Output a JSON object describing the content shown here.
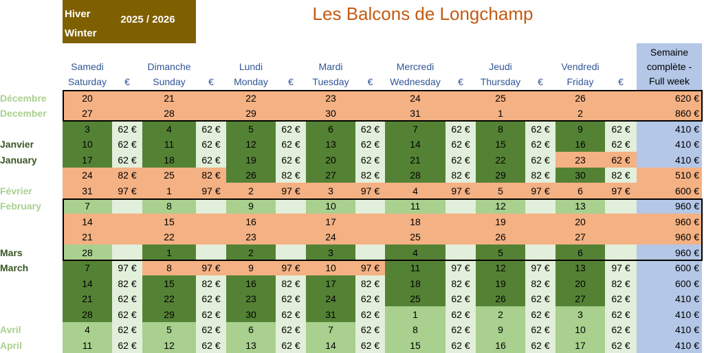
{
  "header": {
    "season_fr": "Hiver",
    "season_en": "Winter",
    "years": "2025 / 2026",
    "title": "Les Balcons de Longchamp"
  },
  "columns": [
    {
      "fr": "Samedi",
      "en": "Saturday"
    },
    {
      "fr": "Dimanche",
      "en": "Sunday"
    },
    {
      "fr": "Lundi",
      "en": "Monday"
    },
    {
      "fr": "Mardi",
      "en": "Tuesday"
    },
    {
      "fr": "Mercredi",
      "en": "Wednesday"
    },
    {
      "fr": "Jeudi",
      "en": "Thursday"
    },
    {
      "fr": "Vendredi",
      "en": "Friday"
    }
  ],
  "currency": "€",
  "week_header": [
    "Semaine",
    "complète -",
    "Full week"
  ],
  "rows": [
    {
      "label": "Décembre",
      "days": [
        20,
        21,
        22,
        23,
        24,
        25,
        26
      ],
      "prices": [
        null,
        null,
        null,
        null,
        null,
        null,
        null
      ],
      "week": "620 €"
    },
    {
      "label": "December",
      "days": [
        27,
        28,
        29,
        30,
        31,
        1,
        2
      ],
      "prices": [
        null,
        null,
        null,
        null,
        null,
        null,
        null
      ],
      "week": "860 €"
    },
    {
      "days": [
        3,
        4,
        5,
        6,
        7,
        8,
        9
      ],
      "prices": [
        "62 €",
        "62 €",
        "62 €",
        "62 €",
        "62 €",
        "62 €",
        "62 €"
      ],
      "week": "410 €"
    },
    {
      "label": "Janvier",
      "days": [
        10,
        11,
        12,
        13,
        14,
        15,
        16
      ],
      "prices": [
        "62 €",
        "62 €",
        "62 €",
        "62 €",
        "62 €",
        "62 €",
        "62 €"
      ],
      "week": "410 €"
    },
    {
      "label": "January",
      "days": [
        17,
        18,
        19,
        20,
        21,
        22,
        23
      ],
      "prices": [
        "62 €",
        "62 €",
        "62 €",
        "62 €",
        "62 €",
        "62 €",
        "62 €"
      ],
      "week": "410 €"
    },
    {
      "days": [
        24,
        25,
        26,
        27,
        28,
        29,
        30
      ],
      "prices": [
        "82 €",
        "82 €",
        "82 €",
        "82 €",
        "82 €",
        "82 €",
        "82 €"
      ],
      "week": "510 €"
    },
    {
      "label": "Février",
      "days": [
        31,
        1,
        2,
        3,
        4,
        5,
        6
      ],
      "prices": [
        "97 €",
        "97 €",
        "97 €",
        "97 €",
        "97 €",
        "97 €",
        "97 €"
      ],
      "week": "600 €"
    },
    {
      "label": "February",
      "days": [
        7,
        8,
        9,
        10,
        11,
        12,
        13
      ],
      "prices": [
        null,
        null,
        null,
        null,
        null,
        null,
        null
      ],
      "week": "960 €"
    },
    {
      "days": [
        14,
        15,
        16,
        17,
        18,
        19,
        20
      ],
      "prices": [
        null,
        null,
        null,
        null,
        null,
        null,
        null
      ],
      "week": "960 €"
    },
    {
      "days": [
        21,
        22,
        23,
        24,
        25,
        26,
        27
      ],
      "prices": [
        null,
        null,
        null,
        null,
        null,
        null,
        null
      ],
      "week": "960 €"
    },
    {
      "label": "Mars",
      "days": [
        28,
        1,
        2,
        3,
        4,
        5,
        6
      ],
      "prices": [
        null,
        null,
        null,
        null,
        null,
        null,
        null
      ],
      "week": "960 €"
    },
    {
      "label": "March",
      "days": [
        7,
        8,
        9,
        10,
        11,
        12,
        13
      ],
      "prices": [
        "97 €",
        "97 €",
        "97 €",
        "97 €",
        "97 €",
        "97 €",
        "97 €"
      ],
      "week": "600 €"
    },
    {
      "days": [
        14,
        15,
        16,
        17,
        18,
        19,
        20
      ],
      "prices": [
        "82 €",
        "82 €",
        "82 €",
        "82 €",
        "82 €",
        "82 €",
        "82 €"
      ],
      "week": "600 €"
    },
    {
      "days": [
        21,
        22,
        23,
        24,
        25,
        26,
        27
      ],
      "prices": [
        "62 €",
        "62 €",
        "62 €",
        "62 €",
        "62 €",
        "62 €",
        "62 €"
      ],
      "week": "410 €"
    },
    {
      "days": [
        28,
        29,
        30,
        31,
        1,
        2,
        3
      ],
      "prices": [
        "62 €",
        "62 €",
        "62 €",
        "62 €",
        "62 €",
        "62 €",
        "62 €"
      ],
      "week": "410 €"
    },
    {
      "label": "Avril",
      "days": [
        4,
        5,
        6,
        7,
        8,
        9,
        10
      ],
      "prices": [
        "62 €",
        "62 €",
        "62 €",
        "62 €",
        "62 €",
        "62 €",
        "62 €"
      ],
      "week": "410 €"
    },
    {
      "label": "April",
      "days": [
        11,
        12,
        13,
        14,
        15,
        16,
        17
      ],
      "prices": [
        "62 €",
        "62 €",
        "62 €",
        "62 €",
        "62 €",
        "62 €",
        "62 €"
      ],
      "week": "410 €"
    }
  ]
}
